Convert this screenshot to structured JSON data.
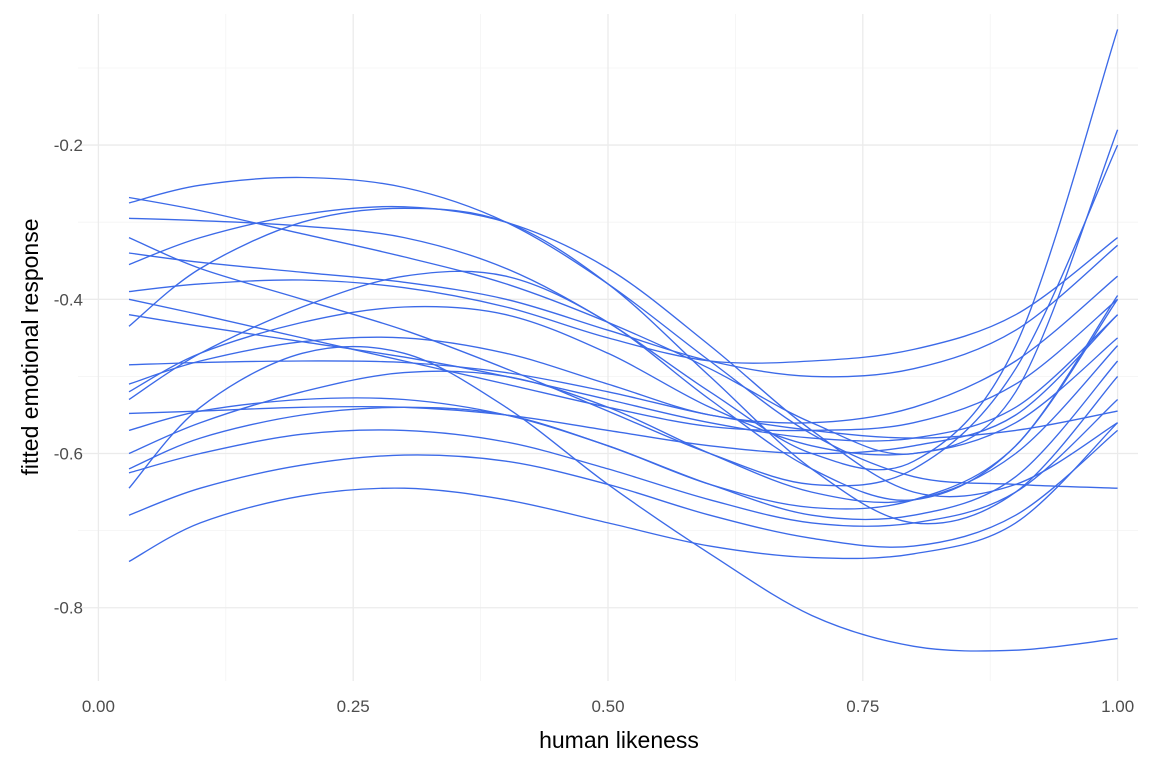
{
  "colors": {
    "line": "#3C6AE8",
    "grid_major": "#EBEBEB",
    "grid_minor": "#F4F4F4",
    "tick_text": "#4D4D4D"
  },
  "chart_data": {
    "type": "line",
    "title": "",
    "xlabel": "human likeness",
    "ylabel": "fitted emotional response",
    "xlim": [
      -0.02,
      1.02
    ],
    "ylim": [
      -0.895,
      -0.03
    ],
    "x_ticks": [
      0.0,
      0.25,
      0.5,
      0.75,
      1.0
    ],
    "x_tick_labels": [
      "0.00",
      "0.25",
      "0.50",
      "0.75",
      "1.00"
    ],
    "y_ticks": [
      -0.8,
      -0.6,
      -0.4,
      -0.2
    ],
    "y_tick_labels": [
      "-0.8",
      "-0.6",
      "-0.4",
      "-0.2"
    ],
    "grid": true,
    "legend": "none",
    "x": [
      0.03,
      0.1,
      0.2,
      0.3,
      0.4,
      0.5,
      0.6,
      0.7,
      0.8,
      0.9,
      1.0
    ],
    "series": [
      {
        "values": [
          -0.275,
          -0.252,
          -0.242,
          -0.255,
          -0.3,
          -0.38,
          -0.48,
          -0.575,
          -0.63,
          -0.64,
          -0.645
        ]
      },
      {
        "values": [
          -0.295,
          -0.298,
          -0.305,
          -0.32,
          -0.36,
          -0.43,
          -0.52,
          -0.6,
          -0.61,
          -0.46,
          -0.05
        ]
      },
      {
        "values": [
          -0.268,
          -0.285,
          -0.315,
          -0.345,
          -0.38,
          -0.43,
          -0.49,
          -0.56,
          -0.6,
          -0.52,
          -0.18
        ]
      },
      {
        "values": [
          -0.32,
          -0.36,
          -0.4,
          -0.44,
          -0.49,
          -0.545,
          -0.6,
          -0.64,
          -0.62,
          -0.49,
          -0.2
        ]
      },
      {
        "values": [
          -0.355,
          -0.32,
          -0.29,
          -0.28,
          -0.3,
          -0.36,
          -0.46,
          -0.57,
          -0.65,
          -0.64,
          -0.56
        ]
      },
      {
        "values": [
          -0.34,
          -0.352,
          -0.365,
          -0.378,
          -0.4,
          -0.44,
          -0.48,
          -0.5,
          -0.49,
          -0.44,
          -0.33
        ]
      },
      {
        "values": [
          -0.435,
          -0.36,
          -0.3,
          -0.282,
          -0.3,
          -0.38,
          -0.5,
          -0.62,
          -0.69,
          -0.65,
          -0.5
        ]
      },
      {
        "values": [
          -0.39,
          -0.38,
          -0.375,
          -0.385,
          -0.41,
          -0.45,
          -0.48,
          -0.48,
          -0.465,
          -0.42,
          -0.32
        ]
      },
      {
        "values": [
          -0.4,
          -0.42,
          -0.45,
          -0.48,
          -0.51,
          -0.54,
          -0.565,
          -0.57,
          -0.56,
          -0.51,
          -0.4
        ]
      },
      {
        "values": [
          -0.42,
          -0.435,
          -0.455,
          -0.475,
          -0.5,
          -0.53,
          -0.56,
          -0.58,
          -0.58,
          -0.54,
          -0.42
        ]
      },
      {
        "values": [
          -0.485,
          -0.482,
          -0.48,
          -0.482,
          -0.495,
          -0.52,
          -0.55,
          -0.57,
          -0.58,
          -0.57,
          -0.545
        ]
      },
      {
        "values": [
          -0.51,
          -0.48,
          -0.455,
          -0.45,
          -0.47,
          -0.51,
          -0.55,
          -0.56,
          -0.54,
          -0.48,
          -0.37
        ]
      },
      {
        "values": [
          -0.52,
          -0.47,
          -0.43,
          -0.41,
          -0.42,
          -0.47,
          -0.54,
          -0.59,
          -0.6,
          -0.56,
          -0.45
        ]
      },
      {
        "values": [
          -0.53,
          -0.47,
          -0.41,
          -0.37,
          -0.37,
          -0.43,
          -0.53,
          -0.62,
          -0.66,
          -0.59,
          -0.395
        ]
      },
      {
        "values": [
          -0.548,
          -0.545,
          -0.54,
          -0.54,
          -0.55,
          -0.57,
          -0.59,
          -0.6,
          -0.59,
          -0.55,
          -0.42
        ]
      },
      {
        "values": [
          -0.57,
          -0.545,
          -0.53,
          -0.53,
          -0.55,
          -0.59,
          -0.64,
          -0.67,
          -0.66,
          -0.59,
          -0.4
        ]
      },
      {
        "values": [
          -0.6,
          -0.56,
          -0.52,
          -0.495,
          -0.5,
          -0.54,
          -0.6,
          -0.65,
          -0.66,
          -0.6,
          -0.46
        ]
      },
      {
        "values": [
          -0.62,
          -0.58,
          -0.55,
          -0.54,
          -0.55,
          -0.59,
          -0.64,
          -0.68,
          -0.68,
          -0.63,
          -0.48
        ]
      },
      {
        "values": [
          -0.625,
          -0.6,
          -0.575,
          -0.57,
          -0.585,
          -0.62,
          -0.66,
          -0.69,
          -0.69,
          -0.65,
          -0.53
        ]
      },
      {
        "values": [
          -0.68,
          -0.645,
          -0.615,
          -0.602,
          -0.61,
          -0.64,
          -0.68,
          -0.71,
          -0.72,
          -0.68,
          -0.57
        ]
      },
      {
        "values": [
          -0.74,
          -0.69,
          -0.655,
          -0.645,
          -0.66,
          -0.69,
          -0.72,
          -0.735,
          -0.73,
          -0.69,
          -0.56
        ]
      },
      {
        "values": [
          -0.645,
          -0.54,
          -0.47,
          -0.47,
          -0.54,
          -0.64,
          -0.73,
          -0.81,
          -0.85,
          -0.855,
          -0.84
        ]
      }
    ]
  }
}
